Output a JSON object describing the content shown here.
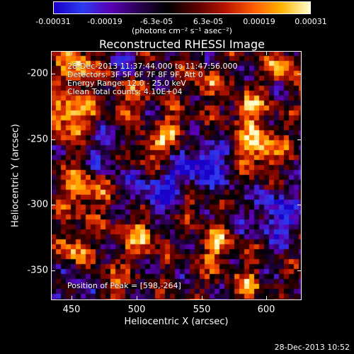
{
  "colorbar": {
    "ticks": [
      "-0.00031",
      "-0.00019",
      "-6.3e-05",
      "6.3e-05",
      "0.00019",
      "0.00031"
    ],
    "units": "(photons cm⁻² s⁻¹ asec⁻²)",
    "stops": [
      "#1a00c8",
      "#2d3cf0",
      "#5a00b4",
      "#2a0050",
      "#000000",
      "#5a0000",
      "#b41400",
      "#ff5a00",
      "#ffb400",
      "#ffffd0"
    ]
  },
  "title": "Reconstructed RHESSI Image",
  "annotations": {
    "time_range": "28-Dec-2013 11:37:44.000 to 11:47:56.000",
    "detectors": "Detectors: 3F 5F 6F 7F 8F 9F, Att 0",
    "energy": "Energy Range: 12.0 - 25.0 keV",
    "clean": "Clean    Total counts: 4.10E+04",
    "peak": "Position of Peak = [598,-264]"
  },
  "axes": {
    "xlabel": "Heliocentric X (arcsec)",
    "ylabel": "Heliocentric Y (arcsec)",
    "xticks": [
      "450",
      "500",
      "550",
      "600"
    ],
    "yticks": [
      "-200",
      "-250",
      "-300",
      "-350"
    ],
    "xlim": [
      436,
      628
    ],
    "ylim": [
      -376,
      -185
    ]
  },
  "timestamp": "28-Dec-2013 10:52"
}
